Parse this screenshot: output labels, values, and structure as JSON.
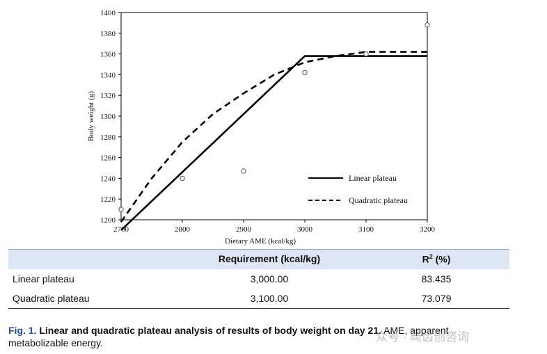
{
  "chart_data": {
    "type": "line",
    "xlabel": "Dietary AME (kcal/kg)",
    "ylabel": "Body weight (g)",
    "xlim": [
      2700,
      3200
    ],
    "ylim": [
      1200,
      1400
    ],
    "x_ticks": [
      2700,
      2800,
      2900,
      3000,
      3100,
      3200
    ],
    "y_ticks": [
      1200,
      1220,
      1240,
      1260,
      1280,
      1300,
      1320,
      1340,
      1360,
      1380,
      1400
    ],
    "grid": false,
    "legend_position": "bottom-right",
    "observed_points": [
      {
        "x": 2700,
        "y": 1210
      },
      {
        "x": 2800,
        "y": 1240
      },
      {
        "x": 2900,
        "y": 1247
      },
      {
        "x": 3000,
        "y": 1342
      },
      {
        "x": 3100,
        "y": 1360
      },
      {
        "x": 3200,
        "y": 1388
      }
    ],
    "series": [
      {
        "name": "Linear plateau",
        "style": "solid",
        "x": [
          2700,
          3000,
          3200
        ],
        "y": [
          1190,
          1358,
          1358
        ]
      },
      {
        "name": "Quadratic plateau",
        "style": "dashed",
        "x": [
          2700,
          2750,
          2800,
          2850,
          2900,
          2950,
          3000,
          3050,
          3100,
          3200
        ],
        "y": [
          1198,
          1240,
          1275,
          1302,
          1322,
          1340,
          1352,
          1358,
          1362,
          1362
        ]
      }
    ]
  },
  "table": {
    "headers": [
      "",
      "Requirement (kcal/kg)",
      "R² (%)"
    ],
    "rows": [
      {
        "label": "Linear plateau",
        "requirement": "3,000.00",
        "r2": "83.435"
      },
      {
        "label": "Quadratic plateau",
        "requirement": "3,100.00",
        "r2": "73.079"
      }
    ]
  },
  "caption": {
    "fig_label": "Fig. 1.",
    "bold_text": "Linear and quadratic plateau analysis of results of body weight on day 21.",
    "text": "AME, apparent metabolizable energy."
  },
  "watermark": "众号 · 畸齿创咨询"
}
